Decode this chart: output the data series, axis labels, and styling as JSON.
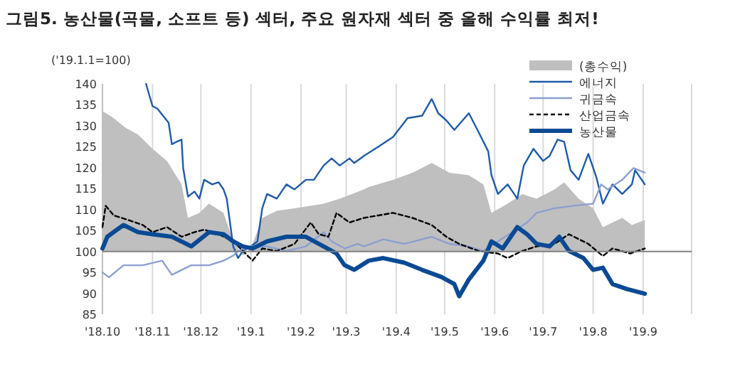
{
  "chart_data": {
    "type": "line",
    "title": "그림5. 농산물(곡물, 소프트 등) 섹터, 주요 원자재 섹터 중 올해 수익률 최저!",
    "ylabel": "('19.1.1=100)",
    "xlim": [
      "2018-10-01",
      "2019-10-01"
    ],
    "ylim": [
      85,
      140
    ],
    "xticks": [
      {
        "value": "2018-10-01",
        "label": "'18.10"
      },
      {
        "value": "2018-11-01",
        "label": "'18.11"
      },
      {
        "value": "2018-12-01",
        "label": "'18.12"
      },
      {
        "value": "2019-01-01",
        "label": "'19.1"
      },
      {
        "value": "2019-02-01",
        "label": "'19.2"
      },
      {
        "value": "2019-03-01",
        "label": "'19.3"
      },
      {
        "value": "2019-04-01",
        "label": "'19.4"
      },
      {
        "value": "2019-05-01",
        "label": "'19.5"
      },
      {
        "value": "2019-06-01",
        "label": "'19.6"
      },
      {
        "value": "2019-07-01",
        "label": "'19.7"
      },
      {
        "value": "2019-08-01",
        "label": "'19.8"
      },
      {
        "value": "2019-09-01",
        "label": "'19.9"
      },
      {
        "value": "2019-10-01",
        "label": null
      }
    ],
    "yticks": [
      85,
      90,
      95,
      100,
      105,
      110,
      115,
      120,
      125,
      130,
      135,
      140
    ],
    "grid": "x",
    "legend": "top right",
    "marker": "none",
    "ref_lines": [
      {
        "axis": "y",
        "value": 100,
        "color": "#808080"
      }
    ],
    "series": [
      {
        "name": "(총수익)",
        "type": "area",
        "color": "#bfbfbf",
        "x": [
          "2018-10-01",
          "2018-10-08",
          "2018-10-15",
          "2018-10-23",
          "2018-11-01",
          "2018-11-10",
          "2018-11-19",
          "2018-11-23",
          "2018-11-30",
          "2018-12-06",
          "2018-12-15",
          "2018-12-21",
          "2018-12-27",
          "2019-01-01",
          "2019-01-08",
          "2019-01-17",
          "2019-01-28",
          "2019-02-07",
          "2019-02-15",
          "2019-02-25",
          "2019-03-12",
          "2019-03-15",
          "2019-03-30",
          "2019-04-11",
          "2019-04-23",
          "2019-05-04",
          "2019-05-16",
          "2019-05-25",
          "2019-05-30",
          "2019-06-09",
          "2019-06-18",
          "2019-06-27",
          "2019-07-08",
          "2019-07-14",
          "2019-07-23",
          "2019-08-01",
          "2019-08-07",
          "2019-08-19",
          "2019-08-25",
          "2019-09-02"
        ],
        "values": [
          133.5,
          131.8,
          129.6,
          127.9,
          124.5,
          121.6,
          116,
          108,
          109.2,
          111.4,
          109.2,
          102.4,
          99,
          100.7,
          108,
          109.7,
          110.3,
          110.9,
          111.4,
          112.6,
          114.8,
          115.4,
          117.1,
          118.8,
          121.1,
          118.8,
          118.2,
          116,
          109.2,
          111.4,
          113.7,
          112.6,
          114.8,
          116.5,
          112.6,
          110.3,
          105.8,
          108,
          106.3,
          107.5
        ]
      },
      {
        "name": "에너지",
        "color": "#1f5ba6",
        "x": [
          "2018-10-28",
          "2018-11-01",
          "2018-11-04",
          "2018-11-11",
          "2018-11-13",
          "2018-11-16",
          "2018-11-19",
          "2018-11-20",
          "2018-11-23",
          "2018-11-27",
          "2018-11-30",
          "2018-12-03",
          "2018-12-08",
          "2018-12-12",
          "2018-12-15",
          "2018-12-17",
          "2018-12-19",
          "2018-12-21",
          "2018-12-24",
          "2018-12-27",
          "2019-01-01",
          "2019-01-05",
          "2019-01-08",
          "2019-01-11",
          "2019-01-17",
          "2019-01-23",
          "2019-01-28",
          "2019-02-04",
          "2019-02-09",
          "2019-02-15",
          "2019-02-20",
          "2019-02-25",
          "2019-03-03",
          "2019-03-06",
          "2019-03-12",
          "2019-03-21",
          "2019-03-30",
          "2019-04-08",
          "2019-04-17",
          "2019-04-23",
          "2019-04-27",
          "2019-05-02",
          "2019-05-07",
          "2019-05-16",
          "2019-05-22",
          "2019-05-28",
          "2019-05-30",
          "2019-06-03",
          "2019-06-09",
          "2019-06-15",
          "2019-06-19",
          "2019-06-25",
          "2019-07-01",
          "2019-07-05",
          "2019-07-10",
          "2019-07-14",
          "2019-07-18",
          "2019-07-23",
          "2019-07-29",
          "2019-08-03",
          "2019-08-07",
          "2019-08-13",
          "2019-08-19",
          "2019-08-25",
          "2019-08-27",
          "2019-09-02"
        ],
        "values": [
          140,
          134.7,
          134.1,
          130.7,
          125.6,
          126.2,
          126.7,
          119.9,
          113.1,
          114.3,
          112.6,
          117.1,
          116,
          116.5,
          114.8,
          112.6,
          106.9,
          101.2,
          98.4,
          100.1,
          101.2,
          102.4,
          110.3,
          113.7,
          112.6,
          116,
          114.8,
          117.1,
          117.1,
          120.5,
          122.2,
          120.5,
          122.2,
          121.1,
          122.8,
          125,
          127.3,
          131.8,
          132.4,
          136.4,
          133,
          131.3,
          129,
          133,
          128.5,
          123.9,
          118.2,
          113.7,
          116,
          112.6,
          120.5,
          124.5,
          121.6,
          122.8,
          126.7,
          126.2,
          119.4,
          117.1,
          123.3,
          117.7,
          111.4,
          116,
          113.7,
          116,
          119.4,
          116
        ]
      },
      {
        "name": "귀금속",
        "color": "#8c9fd0",
        "x": [
          "2018-10-01",
          "2018-10-05",
          "2018-10-14",
          "2018-10-26",
          "2018-11-07",
          "2018-11-13",
          "2018-11-25",
          "2018-12-06",
          "2018-12-15",
          "2018-12-21",
          "2018-12-24",
          "2019-01-01",
          "2019-01-11",
          "2019-01-23",
          "2019-02-04",
          "2019-02-15",
          "2019-02-20",
          "2019-02-28",
          "2019-03-08",
          "2019-03-12",
          "2019-03-24",
          "2019-04-06",
          "2019-04-23",
          "2019-05-04",
          "2019-05-16",
          "2019-05-25",
          "2019-06-03",
          "2019-06-12",
          "2019-06-21",
          "2019-06-27",
          "2019-07-08",
          "2019-07-20",
          "2019-08-01",
          "2019-08-06",
          "2019-08-10",
          "2019-08-19",
          "2019-08-26",
          "2019-09-02"
        ],
        "values": [
          95,
          93.8,
          96.7,
          96.7,
          97.8,
          94.4,
          96.7,
          96.7,
          97.8,
          99,
          100.1,
          101.2,
          101.2,
          100.1,
          101.2,
          104.6,
          102.4,
          100.7,
          101.8,
          101.2,
          102.9,
          101.8,
          103.5,
          101.8,
          101.2,
          100.1,
          102.4,
          104.6,
          106.9,
          109.2,
          110.3,
          110.9,
          111.4,
          116,
          114.8,
          117.1,
          119.9,
          118.8
        ]
      },
      {
        "name": "산업금속",
        "color": "#000000",
        "line_style": "dashed",
        "x": [
          "2018-10-01",
          "2018-10-03",
          "2018-10-08",
          "2018-10-17",
          "2018-10-26",
          "2018-11-01",
          "2018-11-10",
          "2018-11-19",
          "2018-11-27",
          "2018-12-03",
          "2018-12-12",
          "2018-12-21",
          "2018-12-27",
          "2019-01-02",
          "2019-01-08",
          "2019-01-17",
          "2019-01-28",
          "2019-02-07",
          "2019-02-12",
          "2019-02-18",
          "2019-02-23",
          "2019-03-03",
          "2019-03-12",
          "2019-03-21",
          "2019-03-30",
          "2019-04-11",
          "2019-04-23",
          "2019-05-02",
          "2019-05-10",
          "2019-05-22",
          "2019-06-03",
          "2019-06-09",
          "2019-06-18",
          "2019-06-27",
          "2019-07-08",
          "2019-07-17",
          "2019-07-29",
          "2019-08-07",
          "2019-08-13",
          "2019-08-24",
          "2019-09-02"
        ],
        "values": [
          105.8,
          110.9,
          108.6,
          107.5,
          106.3,
          104.6,
          105.8,
          103.5,
          104.6,
          105.2,
          104.1,
          102.4,
          100.1,
          97.8,
          100.7,
          100.1,
          101.8,
          106.9,
          104.1,
          103.5,
          109.2,
          106.9,
          108,
          108.6,
          109.2,
          108,
          106.3,
          103.5,
          101.8,
          100.1,
          99.5,
          98.4,
          100.1,
          101.2,
          101.8,
          104.1,
          101.8,
          98.9,
          100.7,
          99.5,
          100.7
        ]
      },
      {
        "name": "농산물",
        "color": "#0a4a94",
        "x": [
          "2018-10-01",
          "2018-10-04",
          "2018-10-14",
          "2018-10-23",
          "2018-11-01",
          "2018-11-13",
          "2018-11-25",
          "2018-12-06",
          "2018-12-15",
          "2018-12-21",
          "2018-12-27",
          "2019-01-02",
          "2019-01-11",
          "2019-01-23",
          "2019-02-04",
          "2019-02-15",
          "2019-02-23",
          "2019-02-28",
          "2019-03-06",
          "2019-03-15",
          "2019-03-24",
          "2019-04-06",
          "2019-04-17",
          "2019-04-29",
          "2019-05-07",
          "2019-05-10",
          "2019-05-16",
          "2019-05-25",
          "2019-05-30",
          "2019-06-06",
          "2019-06-15",
          "2019-06-21",
          "2019-06-27",
          "2019-07-05",
          "2019-07-11",
          "2019-07-17",
          "2019-07-26",
          "2019-08-01",
          "2019-08-07",
          "2019-08-13",
          "2019-08-22",
          "2019-09-02"
        ],
        "values": [
          100.7,
          103.5,
          106.3,
          104.6,
          104.1,
          103.5,
          101.2,
          104.6,
          104.1,
          102.4,
          101.2,
          100.7,
          102.4,
          103.5,
          103.5,
          101.2,
          99.5,
          96.7,
          95.6,
          97.8,
          98.4,
          97.3,
          95.6,
          93.9,
          92.2,
          89.3,
          93.3,
          97.8,
          102.4,
          100.7,
          105.8,
          104.1,
          101.8,
          101.2,
          103.5,
          100.1,
          98.4,
          95.6,
          96.1,
          92.2,
          91,
          89.9
        ]
      }
    ]
  }
}
